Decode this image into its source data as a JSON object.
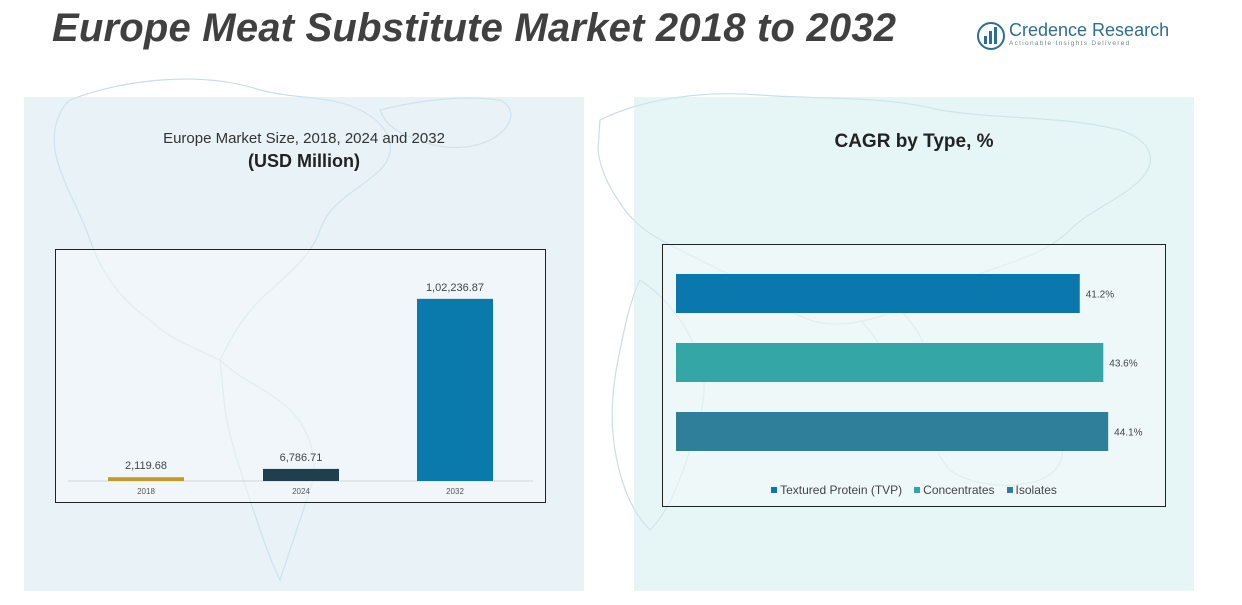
{
  "header": {
    "title": "Europe Meat Substitute Market 2018 to 2032",
    "logo_name": "Credence Research",
    "logo_tagline": "Actionable Insights Delivered"
  },
  "left_panel": {
    "subtitle": "Europe Market Size, 2018, 2024 and 2032",
    "unit": "(USD Million)"
  },
  "right_panel": {
    "title": "CAGR by Type, %"
  },
  "colors": {
    "map_line": "#c9dde6",
    "logo": "#2c6f91",
    "bar_2018": "#c09a2a",
    "bar_2024": "#1f3f4f",
    "bar_2032": "#0a7aad",
    "tvp": "#0a78ad",
    "concentrates": "#35a6a6",
    "isolates": "#2f7e9a"
  },
  "chart_data": [
    {
      "type": "bar",
      "categories": [
        "2018",
        "2024",
        "2032"
      ],
      "values": [
        2119.68,
        6786.71,
        102236.87
      ],
      "value_labels": [
        "2,119.68",
        "6,786.71",
        "1,02,236.87"
      ],
      "title": "Europe Market Size, 2018, 2024 and 2032",
      "ylabel": "(USD Million)",
      "ylim": [
        0,
        110000
      ],
      "grid": false
    },
    {
      "type": "bar",
      "orientation": "horizontal",
      "series": [
        {
          "name": "Textured Protein (TVP)",
          "values": [
            41.2
          ],
          "label": "41.2%"
        },
        {
          "name": "Concentrates",
          "values": [
            43.6
          ],
          "label": "43.6%"
        },
        {
          "name": "Isolates",
          "values": [
            44.1
          ],
          "label": "44.1%"
        }
      ],
      "title": "CAGR by Type, %",
      "xlim": [
        0,
        50
      ],
      "legend": "bottom",
      "grid": false
    }
  ]
}
